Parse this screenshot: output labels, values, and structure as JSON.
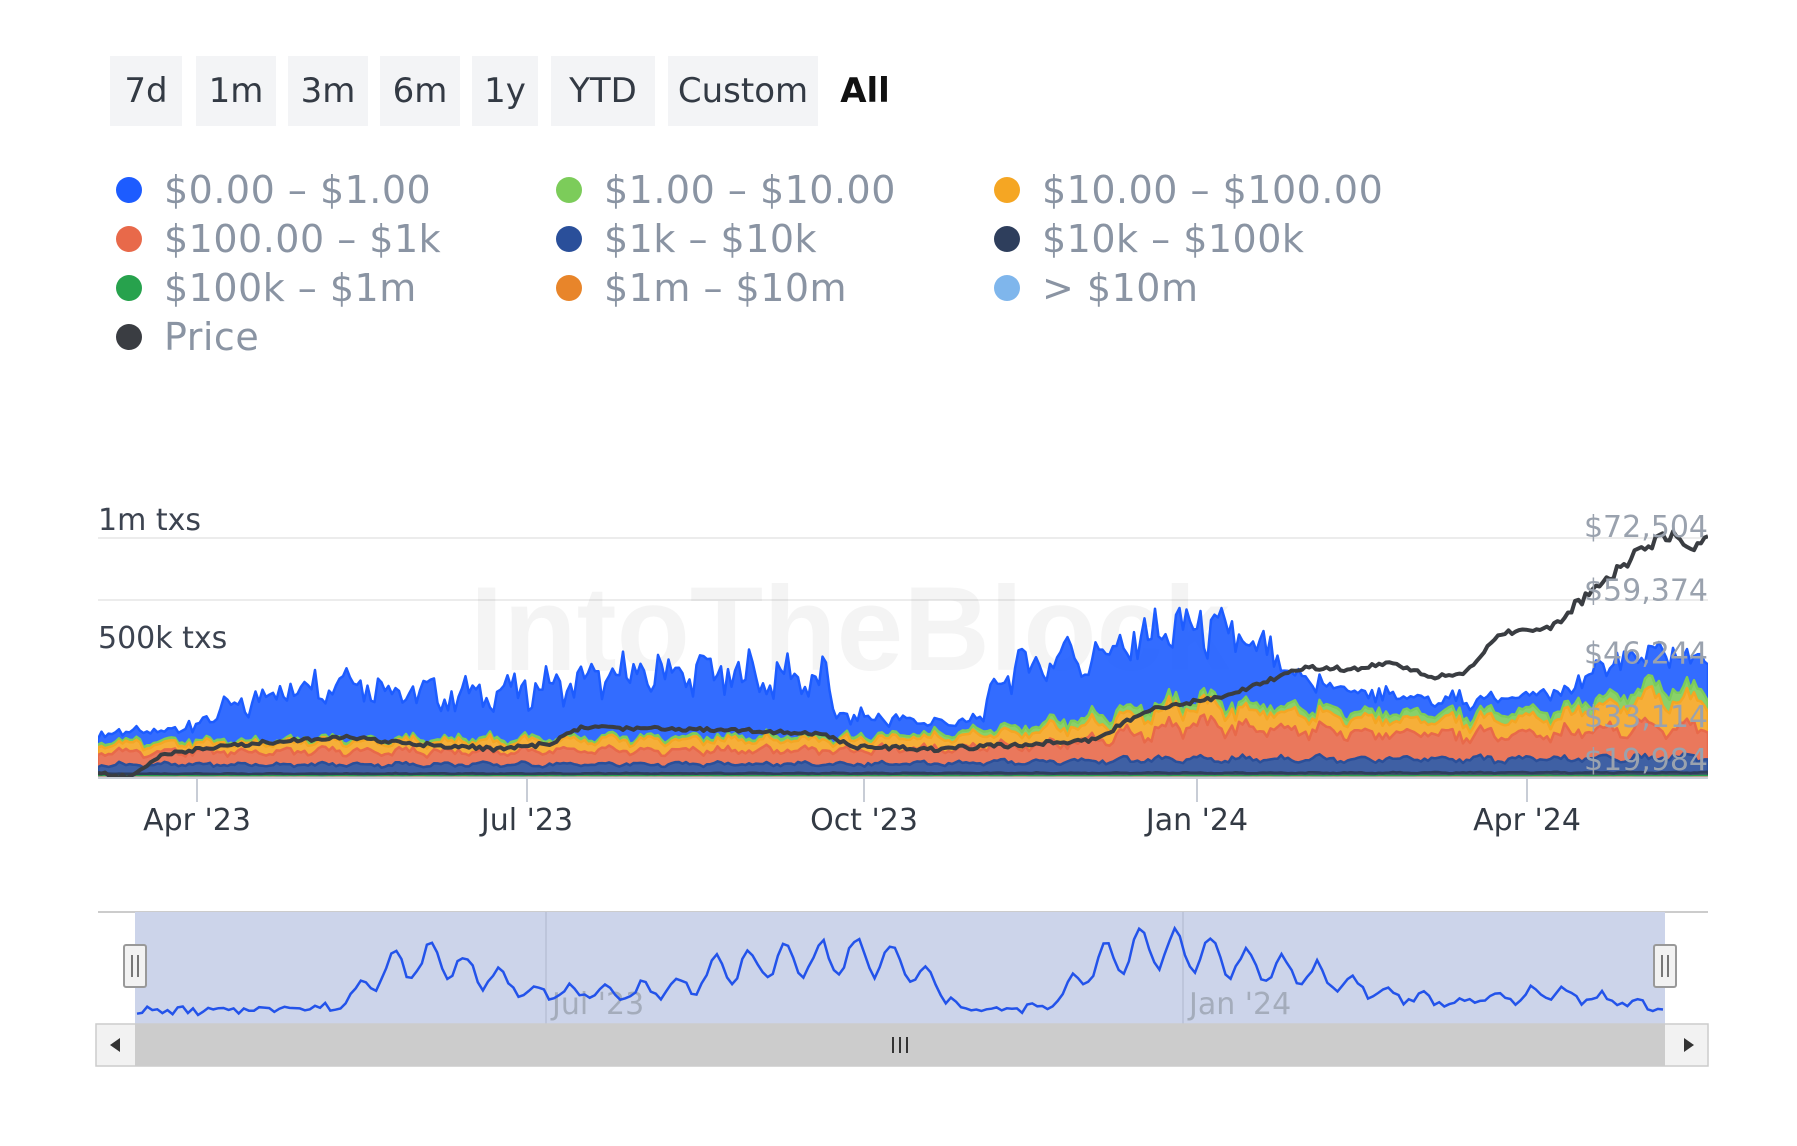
{
  "range_buttons": [
    {
      "label": "7d",
      "active": false
    },
    {
      "label": "1m",
      "active": false
    },
    {
      "label": "3m",
      "active": false
    },
    {
      "label": "6m",
      "active": false
    },
    {
      "label": "1y",
      "active": false
    },
    {
      "label": "YTD",
      "active": false
    },
    {
      "label": "Custom",
      "active": false
    },
    {
      "label": "All",
      "active": true
    }
  ],
  "chart_data": {
    "type": "area",
    "stacked": true,
    "watermark": "IntoTheBlock",
    "x_ticks": [
      "Apr '23",
      "Jul '23",
      "Oct '23",
      "Jan '24",
      "Apr '24"
    ],
    "x_range": [
      "2023-03-01",
      "2024-05-31"
    ],
    "y_left": {
      "ticks": [
        "1m txs",
        "500k txs"
      ],
      "tick_values": [
        1000000,
        500000
      ],
      "range": [
        0,
        1000000
      ]
    },
    "y_right": {
      "ticks": [
        "$72,504",
        "$59,374",
        "$46,244",
        "$33,114",
        "$19,984"
      ],
      "tick_values": [
        72504,
        59374,
        46244,
        33114,
        19984
      ],
      "range": [
        19984,
        72504
      ]
    },
    "series": [
      {
        "name": "$0.00 - $1.00",
        "color": "#1d5cff",
        "profile": [
          [
            0,
            30000
          ],
          [
            0.05,
            40000
          ],
          [
            0.11,
            180000
          ],
          [
            0.16,
            230000
          ],
          [
            0.19,
            170000
          ],
          [
            0.23,
            160000
          ],
          [
            0.28,
            190000
          ],
          [
            0.35,
            240000
          ],
          [
            0.42,
            220000
          ],
          [
            0.45,
            210000
          ],
          [
            0.46,
            80000
          ],
          [
            0.52,
            40000
          ],
          [
            0.55,
            40000
          ],
          [
            0.56,
            210000
          ],
          [
            0.6,
            240000
          ],
          [
            0.63,
            220000
          ],
          [
            0.66,
            270000
          ],
          [
            0.7,
            250000
          ],
          [
            0.72,
            210000
          ],
          [
            0.74,
            120000
          ],
          [
            0.76,
            90000
          ],
          [
            0.82,
            50000
          ],
          [
            0.87,
            50000
          ],
          [
            0.92,
            70000
          ],
          [
            0.94,
            140000
          ],
          [
            0.96,
            110000
          ],
          [
            0.98,
            120000
          ],
          [
            1,
            120000
          ]
        ]
      },
      {
        "name": "$1.00 - $10.00",
        "color": "#7ccc5a",
        "profile": [
          [
            0,
            10000
          ],
          [
            0.5,
            12000
          ],
          [
            0.62,
            30000
          ],
          [
            0.7,
            25000
          ],
          [
            0.93,
            30000
          ],
          [
            0.98,
            50000
          ],
          [
            1,
            40000
          ]
        ]
      },
      {
        "name": "$10.00 - $100.00",
        "color": "#f5a623",
        "profile": [
          [
            0,
            30000
          ],
          [
            0.3,
            40000
          ],
          [
            0.5,
            40000
          ],
          [
            0.62,
            60000
          ],
          [
            0.7,
            70000
          ],
          [
            0.8,
            50000
          ],
          [
            0.9,
            60000
          ],
          [
            0.96,
            110000
          ],
          [
            1,
            100000
          ]
        ]
      },
      {
        "name": "$100.00 - $1k",
        "color": "#e8694a",
        "profile": [
          [
            0,
            50000
          ],
          [
            0.3,
            50000
          ],
          [
            0.5,
            55000
          ],
          [
            0.6,
            70000
          ],
          [
            0.68,
            130000
          ],
          [
            0.75,
            110000
          ],
          [
            0.82,
            95000
          ],
          [
            0.9,
            90000
          ],
          [
            0.94,
            110000
          ],
          [
            0.97,
            120000
          ],
          [
            1,
            110000
          ]
        ]
      },
      {
        "name": "$1k - $10k",
        "color": "#2a4f9a",
        "profile": [
          [
            0,
            35000
          ],
          [
            0.5,
            35000
          ],
          [
            0.65,
            50000
          ],
          [
            0.75,
            55000
          ],
          [
            0.9,
            50000
          ],
          [
            1,
            60000
          ]
        ]
      },
      {
        "name": "$10k - $100k",
        "color": "#2e3e5c",
        "profile": [
          [
            0,
            10000
          ],
          [
            1,
            15000
          ]
        ]
      },
      {
        "name": "$100k - $1m",
        "color": "#27a24d",
        "profile": [
          [
            0,
            4000
          ],
          [
            1,
            5000
          ]
        ]
      },
      {
        "name": "$1m - $10m",
        "color": "#e8852a",
        "profile": [
          [
            0,
            1500
          ],
          [
            1,
            1500
          ]
        ]
      },
      {
        "name": "> $10m",
        "color": "#7fb6ec",
        "profile": [
          [
            0,
            1000
          ],
          [
            1,
            1000
          ]
        ]
      },
      {
        "name": "Price",
        "color": "#3a3d42",
        "axis": "right",
        "profile": [
          [
            0,
            21000
          ],
          [
            0.02,
            20000
          ],
          [
            0.04,
            25000
          ],
          [
            0.09,
            27000
          ],
          [
            0.15,
            28500
          ],
          [
            0.2,
            27000
          ],
          [
            0.25,
            26000
          ],
          [
            0.28,
            27000
          ],
          [
            0.3,
            30500
          ],
          [
            0.4,
            30000
          ],
          [
            0.45,
            29000
          ],
          [
            0.47,
            26500
          ],
          [
            0.52,
            26000
          ],
          [
            0.58,
            27000
          ],
          [
            0.62,
            28000
          ],
          [
            0.65,
            34000
          ],
          [
            0.7,
            37000
          ],
          [
            0.75,
            43000
          ],
          [
            0.78,
            42500
          ],
          [
            0.8,
            44000
          ],
          [
            0.83,
            41000
          ],
          [
            0.85,
            42000
          ],
          [
            0.87,
            50000
          ],
          [
            0.9,
            51000
          ],
          [
            0.94,
            62000
          ],
          [
            0.96,
            68000
          ],
          [
            0.98,
            71000
          ],
          [
            0.99,
            67000
          ],
          [
            1,
            70000
          ]
        ]
      }
    ]
  },
  "navigator": {
    "x_ticks": [
      "Jul '23",
      "Jan '24"
    ],
    "profile": [
      [
        0,
        0.05
      ],
      [
        0.06,
        0.05
      ],
      [
        0.1,
        0.1
      ],
      [
        0.13,
        0.08
      ],
      [
        0.16,
        0.55
      ],
      [
        0.2,
        0.7
      ],
      [
        0.22,
        0.52
      ],
      [
        0.26,
        0.3
      ],
      [
        0.3,
        0.25
      ],
      [
        0.33,
        0.3
      ],
      [
        0.36,
        0.35
      ],
      [
        0.38,
        0.55
      ],
      [
        0.42,
        0.65
      ],
      [
        0.47,
        0.72
      ],
      [
        0.5,
        0.65
      ],
      [
        0.52,
        0.4
      ],
      [
        0.54,
        0.1
      ],
      [
        0.56,
        0.05
      ],
      [
        0.58,
        0.08
      ],
      [
        0.6,
        0.1
      ],
      [
        0.62,
        0.55
      ],
      [
        0.66,
        0.85
      ],
      [
        0.7,
        0.75
      ],
      [
        0.72,
        0.65
      ],
      [
        0.74,
        0.55
      ],
      [
        0.76,
        0.55
      ],
      [
        0.78,
        0.45
      ],
      [
        0.8,
        0.35
      ],
      [
        0.82,
        0.25
      ],
      [
        0.84,
        0.2
      ],
      [
        0.86,
        0.15
      ],
      [
        0.88,
        0.18
      ],
      [
        0.9,
        0.22
      ],
      [
        0.93,
        0.28
      ],
      [
        0.96,
        0.2
      ],
      [
        1,
        0.08
      ]
    ]
  }
}
